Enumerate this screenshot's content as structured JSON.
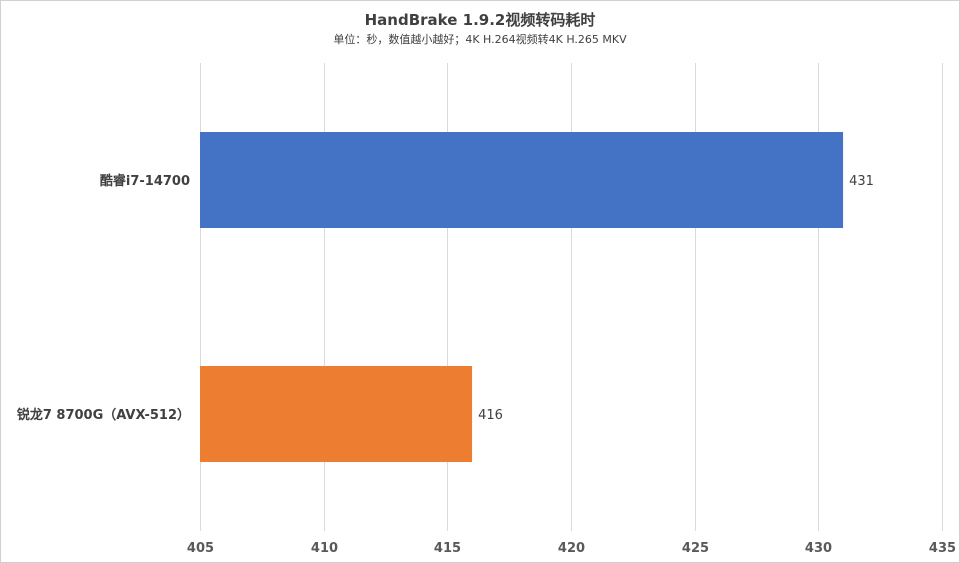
{
  "chart_data": {
    "type": "bar",
    "orientation": "horizontal",
    "title": "HandBrake 1.9.2视频转码耗时",
    "subtitle": "单位：秒，数值越小越好；4K H.264视频转4K H.265 MKV",
    "xlabel": "",
    "ylabel": "",
    "categories": [
      "酷睿i7-14700",
      "锐龙7 8700G（AVX-512）"
    ],
    "values": [
      431,
      416
    ],
    "data_labels": [
      "431",
      "416"
    ],
    "colors": [
      "#4472C4",
      "#ED7D31"
    ],
    "xlim": [
      405,
      435
    ],
    "xticks": [
      405,
      410,
      415,
      420,
      425,
      430,
      435
    ],
    "xtick_labels": [
      "405",
      "410",
      "415",
      "420",
      "425",
      "430",
      "435"
    ],
    "grid": "vertical",
    "legend": "none"
  }
}
